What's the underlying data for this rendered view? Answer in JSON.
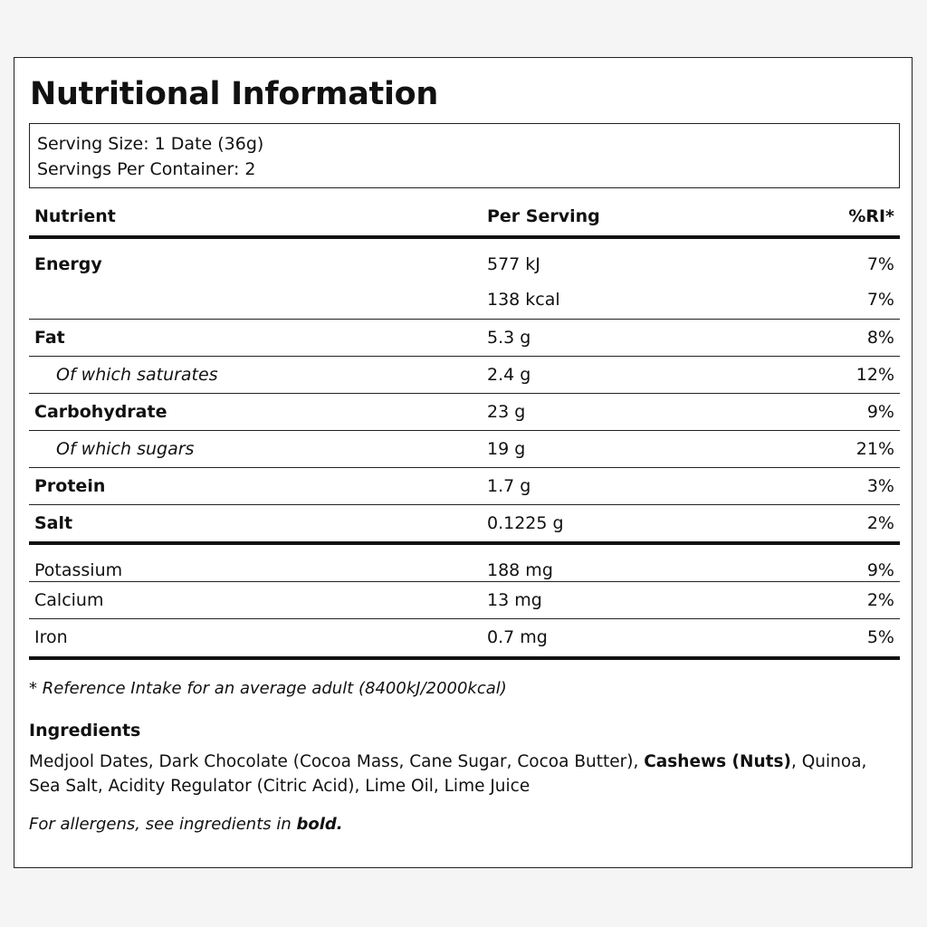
{
  "title": "Nutritional Information",
  "serving": {
    "size": "Serving Size: 1 Date (36g)",
    "per_container": "Servings Per Container: 2"
  },
  "table": {
    "headers": {
      "nutrient": "Nutrient",
      "per_serving": "Per Serving",
      "ri": "%RI*"
    },
    "energy": {
      "name": "Energy",
      "kj": "577 kJ",
      "kj_ri": "7%",
      "kcal": "138 kcal",
      "kcal_ri": "7%"
    },
    "rows": [
      {
        "name": "Fat",
        "value": "5.3 g",
        "ri": "8%"
      },
      {
        "name": "Of which saturates",
        "value": "2.4 g",
        "ri": "12%"
      },
      {
        "name": "Carbohydrate",
        "value": "23 g",
        "ri": "9%"
      },
      {
        "name": "Of which sugars",
        "value": "19 g",
        "ri": "21%"
      },
      {
        "name": "Protein",
        "value": "1.7 g",
        "ri": "3%"
      },
      {
        "name": "Salt",
        "value": "0.1225 g",
        "ri": "2%"
      }
    ],
    "minerals": [
      {
        "name": "Potassium",
        "value": "188 mg",
        "ri": "9%"
      },
      {
        "name": "Calcium",
        "value": "13 mg",
        "ri": "2%"
      },
      {
        "name": "Iron",
        "value": "0.7 mg",
        "ri": "5%"
      }
    ]
  },
  "footnote": "* Reference Intake for an average adult (8400kJ/2000kcal)",
  "ingredients": {
    "heading": "Ingredients",
    "part1": "Medjool Dates, Dark Chocolate (Cocoa Mass, Cane Sugar, Cocoa Butter), ",
    "allergen": "Cashews (Nuts)",
    "part2": ", Quinoa, Sea Salt, Acidity Regulator (Citric Acid), Lime Oil, Lime Juice"
  },
  "allergen_note": {
    "text": "For allergens, see ingredients in ",
    "bold": "bold."
  }
}
